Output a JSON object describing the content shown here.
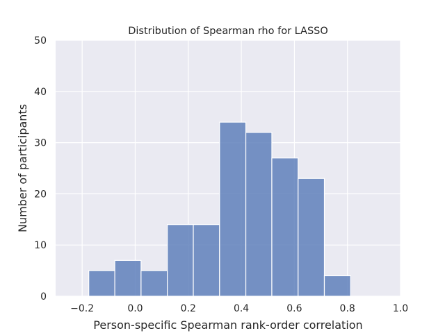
{
  "chart_data": {
    "type": "histogram",
    "title": "Distribution of Spearman rho for LASSO",
    "xlabel": "Person-specific Spearman rank-order correlation",
    "ylabel": "Number of participants",
    "xlim": [
      -0.3,
      1.0
    ],
    "ylim": [
      0,
      50
    ],
    "xticks": [
      -0.2,
      0.0,
      0.2,
      0.4,
      0.6,
      0.8,
      1.0
    ],
    "xtick_labels": [
      "−0.2",
      "0.0",
      "0.2",
      "0.4",
      "0.6",
      "0.8",
      "1.0"
    ],
    "yticks": [
      0,
      10,
      20,
      30,
      40,
      50
    ],
    "ytick_labels": [
      "0",
      "10",
      "20",
      "30",
      "40",
      "50"
    ],
    "bins": [
      {
        "start": -0.175,
        "end": -0.077,
        "count": 5
      },
      {
        "start": -0.077,
        "end": 0.022,
        "count": 7
      },
      {
        "start": 0.022,
        "end": 0.121,
        "count": 5
      },
      {
        "start": 0.121,
        "end": 0.219,
        "count": 14
      },
      {
        "start": 0.219,
        "end": 0.318,
        "count": 14
      },
      {
        "start": 0.318,
        "end": 0.417,
        "count": 34
      },
      {
        "start": 0.417,
        "end": 0.515,
        "count": 32
      },
      {
        "start": 0.515,
        "end": 0.614,
        "count": 27
      },
      {
        "start": 0.614,
        "end": 0.713,
        "count": 23
      },
      {
        "start": 0.713,
        "end": 0.812,
        "count": 4
      }
    ],
    "grid": true,
    "colors": {
      "bar": "#5f80bb",
      "background": "#eaeaf2",
      "grid": "#ffffff"
    }
  }
}
